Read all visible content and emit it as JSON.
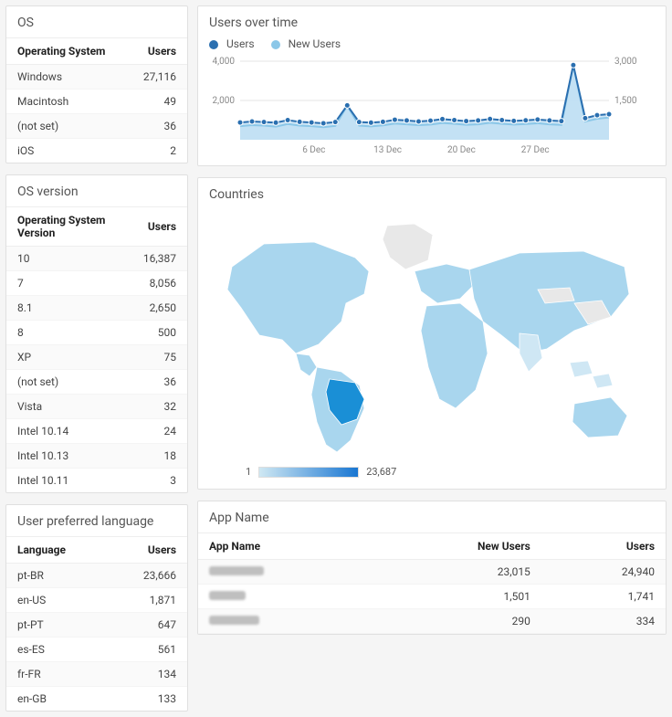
{
  "cards": {
    "os": {
      "title": "OS",
      "col_label": "Operating System",
      "col_value": "Users",
      "rows": [
        {
          "label": "Windows",
          "value": "27,116"
        },
        {
          "label": "Macintosh",
          "value": "49"
        },
        {
          "label": "(not set)",
          "value": "36"
        },
        {
          "label": "iOS",
          "value": "2"
        }
      ]
    },
    "osver": {
      "title": "OS version",
      "col_label": "Operating System Version",
      "col_value": "Users",
      "rows": [
        {
          "label": "10",
          "value": "16,387"
        },
        {
          "label": "7",
          "value": "8,056"
        },
        {
          "label": "8.1",
          "value": "2,650"
        },
        {
          "label": "8",
          "value": "500"
        },
        {
          "label": "XP",
          "value": "75"
        },
        {
          "label": "(not set)",
          "value": "36"
        },
        {
          "label": "Vista",
          "value": "32"
        },
        {
          "label": "Intel 10.14",
          "value": "24"
        },
        {
          "label": "Intel 10.13",
          "value": "18"
        },
        {
          "label": "Intel 10.11",
          "value": "3"
        }
      ]
    },
    "lang": {
      "title": "User preferred language",
      "col_label": "Language",
      "col_value": "Users",
      "rows": [
        {
          "label": "pt-BR",
          "value": "23,666"
        },
        {
          "label": "en-US",
          "value": "1,871"
        },
        {
          "label": "pt-PT",
          "value": "647"
        },
        {
          "label": "es-ES",
          "value": "561"
        },
        {
          "label": "fr-FR",
          "value": "134"
        },
        {
          "label": "en-GB",
          "value": "133"
        }
      ]
    }
  },
  "chart": {
    "title": "Users over time",
    "legend": {
      "users": "Users",
      "new_users": "New Users"
    },
    "colors": {
      "users_line": "#2a6fb0",
      "users_fill": "#b9dcf2",
      "newusers_line": "#8bc7e8",
      "newusers_fill": "#d6ecf7",
      "grid": "#e5e5e5",
      "axis_text": "#888888",
      "bg": "#ffffff",
      "marker_fill": "#2a6fb0"
    },
    "y_left": {
      "min": 0,
      "max": 4000,
      "ticks": [
        "2,000",
        "4,000"
      ]
    },
    "y_right": {
      "min": 0,
      "max": 3000,
      "ticks": [
        "1,500",
        "3,000"
      ]
    },
    "x_ticks": [
      "6 Dec",
      "13 Dec",
      "20 Dec",
      "27 Dec"
    ],
    "n_points": 32,
    "users_values": [
      880,
      930,
      900,
      870,
      1000,
      910,
      880,
      840,
      900,
      1750,
      900,
      870,
      910,
      1020,
      980,
      930,
      970,
      1050,
      1000,
      950,
      980,
      1060,
      1000,
      960,
      990,
      1030,
      980,
      950,
      3800,
      1100,
      1250,
      1300
    ],
    "newusers_values": [
      520,
      560,
      540,
      500,
      600,
      540,
      520,
      480,
      530,
      1300,
      540,
      510,
      550,
      620,
      590,
      560,
      580,
      640,
      610,
      570,
      590,
      650,
      610,
      580,
      600,
      630,
      590,
      570,
      2850,
      700,
      800,
      850
    ],
    "marker_radius": 3,
    "line_width": 2,
    "font_size": 10
  },
  "countries": {
    "title": "Countries",
    "legend_min": "1",
    "legend_max": "23,687",
    "colors": {
      "land": "#a9d6ee",
      "land_light": "#cfe7f4",
      "land_grey": "#e8e8e8",
      "highlight": "#1a8fd6",
      "ocean": "#ffffff",
      "border": "#ffffff"
    }
  },
  "apps": {
    "title": "App Name",
    "col_name": "App Name",
    "col_new": "New Users",
    "col_users": "Users",
    "rows": [
      {
        "blur_w": 60,
        "new_users": "23,015",
        "users": "24,940"
      },
      {
        "blur_w": 40,
        "new_users": "1,501",
        "users": "1,741"
      },
      {
        "blur_w": 55,
        "new_users": "290",
        "users": "334"
      }
    ]
  }
}
